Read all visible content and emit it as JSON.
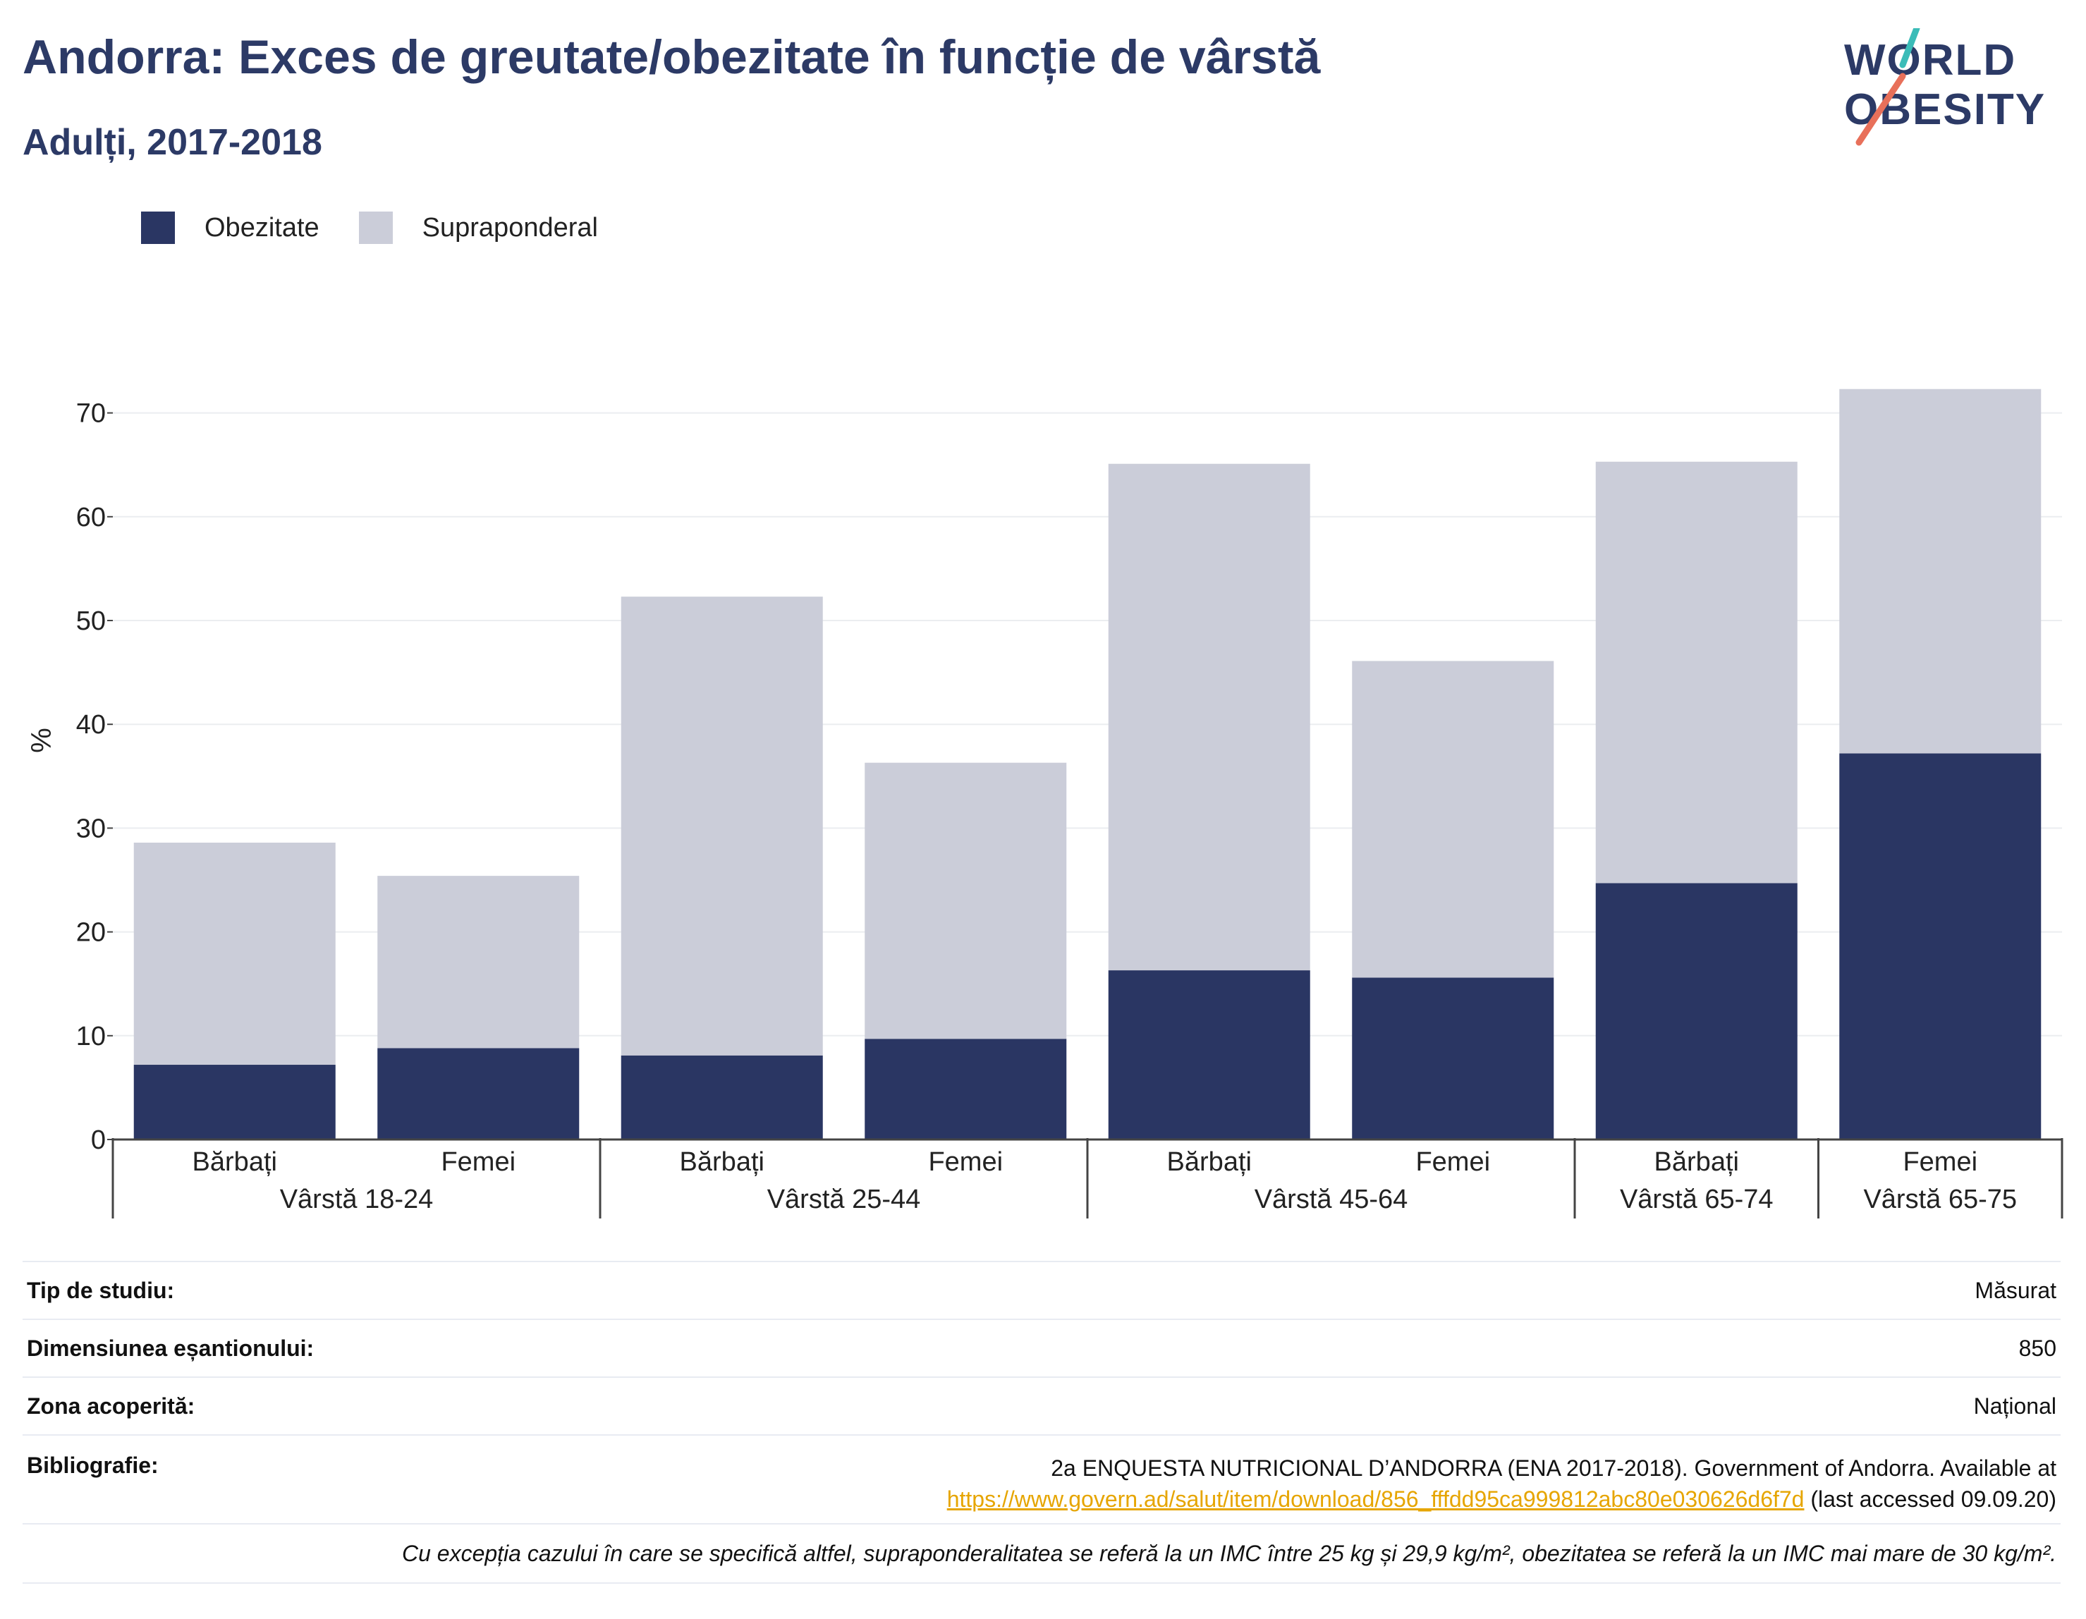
{
  "title": "Andorra: Exces de greutate/obezitate în funcție de vârstă",
  "subtitle": "Adulți, 2017-2018",
  "logo": {
    "line1": "WORLD",
    "line2": "OBESITY"
  },
  "colors": {
    "obesity": "#2a3663",
    "overweight": "#cbcdd9",
    "title": "#2c3a66",
    "link": "#e6a500",
    "logo_teal": "#3bbcb8",
    "logo_coral": "#e8705a"
  },
  "chart_data": {
    "type": "bar",
    "stacked": true,
    "ylabel": "%",
    "ylim": [
      0,
      75
    ],
    "yticks": [
      0,
      10,
      20,
      30,
      40,
      50,
      60,
      70
    ],
    "grid": true,
    "legend_position": "top-left",
    "categories": [
      "Bărbați",
      "Femei",
      "Bărbați",
      "Femei",
      "Bărbați",
      "Femei",
      "Bărbați",
      "Femei"
    ],
    "groups": [
      {
        "label": "Vârstă 18-24",
        "span": [
          0,
          1
        ]
      },
      {
        "label": "Vârstă 25-44",
        "span": [
          2,
          3
        ]
      },
      {
        "label": "Vârstă 45-64",
        "span": [
          4,
          5
        ]
      },
      {
        "label": "Vârstă 65-74",
        "span": [
          6,
          6
        ]
      },
      {
        "label": "Vârstă 65-75",
        "span": [
          7,
          7
        ]
      }
    ],
    "series": [
      {
        "name": "Obezitate",
        "values": [
          7.2,
          8.8,
          8.1,
          9.7,
          16.3,
          15.6,
          24.7,
          37.2
        ]
      },
      {
        "name": "Supraponderal",
        "values": [
          21.4,
          16.6,
          44.2,
          26.6,
          48.8,
          30.5,
          40.6,
          35.1
        ]
      }
    ]
  },
  "info": {
    "study_type": {
      "label": "Tip de studiu:",
      "value": "Măsurat"
    },
    "sample_size": {
      "label": "Dimensiunea eșantionului:",
      "value": "850"
    },
    "coverage": {
      "label": "Zona acoperită:",
      "value": "Național"
    },
    "bibliography": {
      "label": "Bibliografie:",
      "line1": "2a ENQUESTA NUTRICIONAL D’ANDORRA (ENA 2017-2018). Government of Andorra. Available at",
      "link": "https://www.govern.ad/salut/item/download/856_fffdd95ca999812abc80e030626d6f7d",
      "after_link": " (last accessed 09.09.20)"
    },
    "note": "Cu excepția cazului în care se specifică altfel, supraponderalitatea se referă la un IMC între 25 kg și 29,9 kg/m², obezitatea se referă la un IMC mai mare de 30 kg/m²."
  }
}
